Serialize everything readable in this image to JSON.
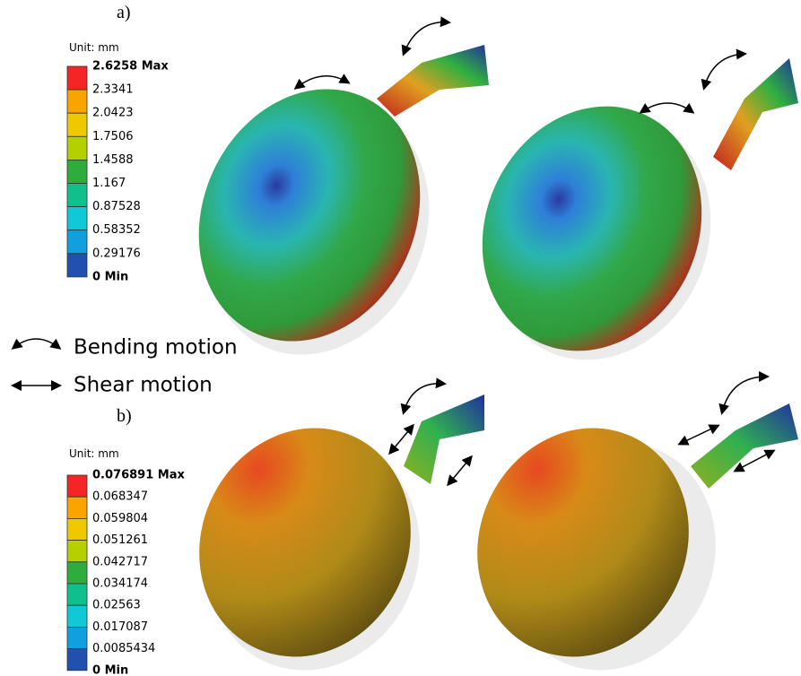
{
  "panels": [
    {
      "label": "a)",
      "unit": "Unit: mm",
      "legend": [
        "2.6258 Max",
        "2.3341",
        "2.0423",
        "1.7506",
        "1.4588",
        "1.167",
        "0.87528",
        "0.58352",
        "0.29176",
        "0 Min"
      ]
    },
    {
      "label": "b)",
      "unit": "Unit: mm",
      "legend": [
        "0.076891 Max",
        "0.068347",
        "0.059804",
        "0.051261",
        "0.042717",
        "0.034174",
        "0.02563",
        "0.017087",
        "0.0085434",
        "0 Min"
      ]
    }
  ],
  "motion_legend": {
    "bending": "Bending motion",
    "shear": "Shear motion"
  }
}
